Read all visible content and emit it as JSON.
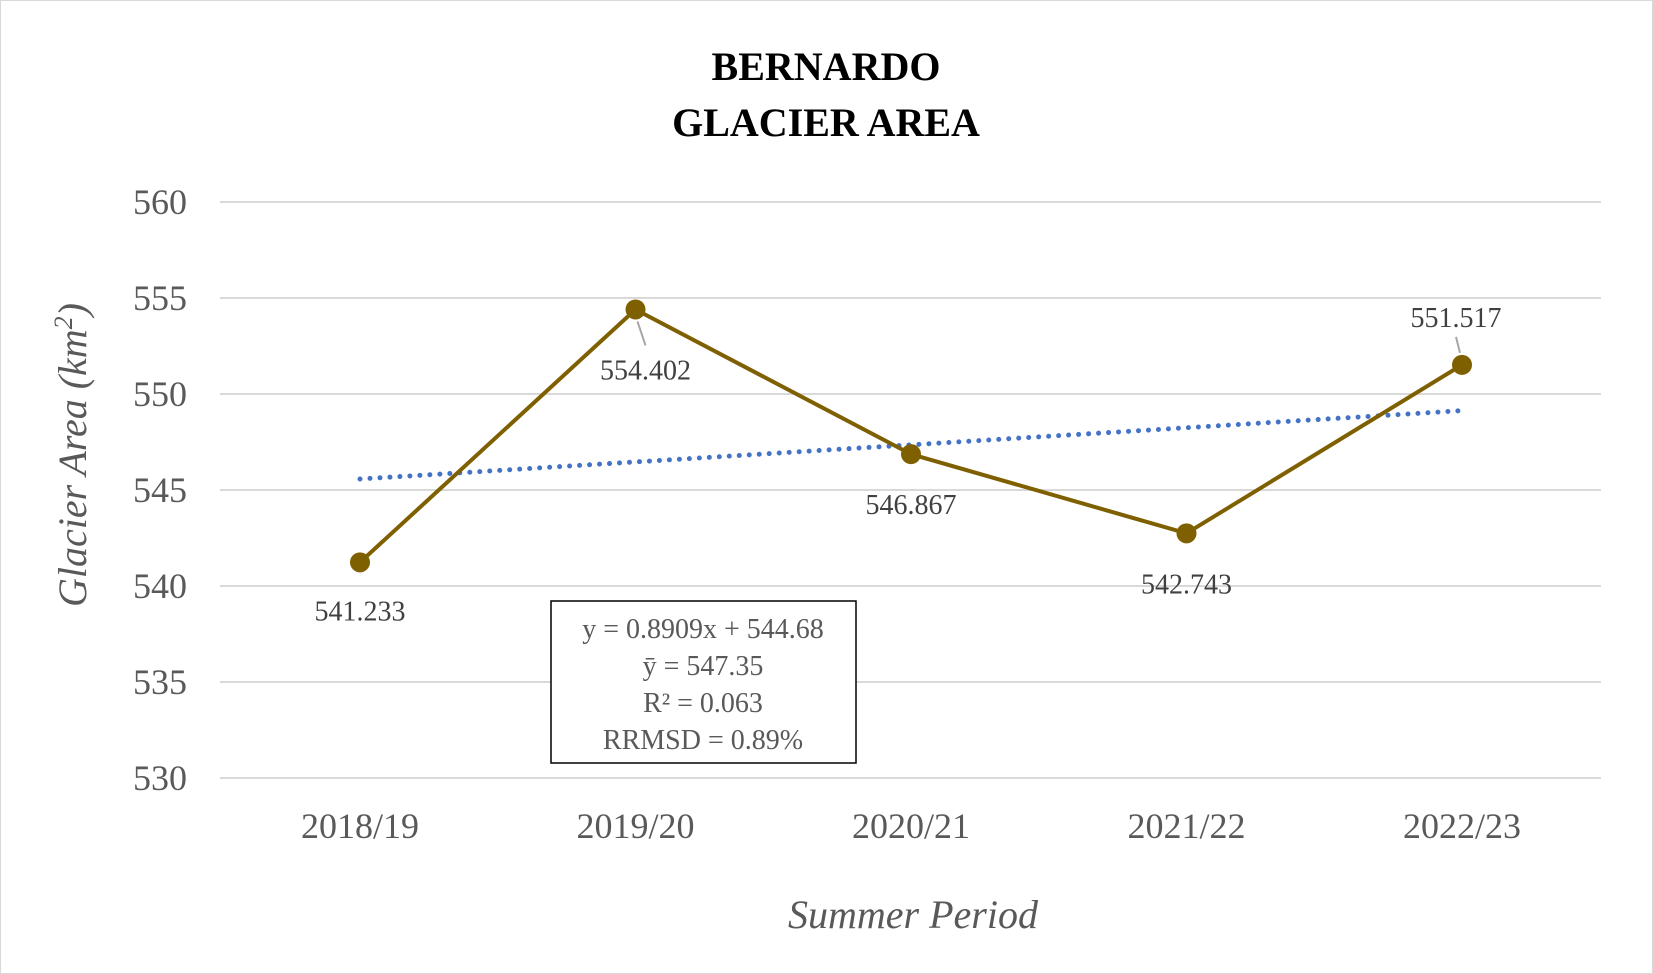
{
  "chart_data": {
    "type": "line",
    "title_lines": [
      "BERNARDO",
      "GLACIER AREA"
    ],
    "xlabel": "Summer Period",
    "ylabel_main": "Glacier Area (km",
    "ylabel_sup": "2",
    "ylabel_end": ")",
    "categories": [
      "2018/19",
      "2019/20",
      "2020/21",
      "2021/22",
      "2022/23"
    ],
    "series": [
      {
        "values": [
          541.233,
          554.402,
          546.867,
          542.743,
          551.517
        ],
        "color": "#7f6000"
      }
    ],
    "data_labels": [
      "541.233",
      "554.402",
      "546.867",
      "542.743",
      "551.517"
    ],
    "trendline": {
      "slope": 0.8909,
      "intercept": 544.68,
      "color": "#4472c4",
      "style": "dotted"
    },
    "ylim": [
      530,
      560
    ],
    "yticks": [
      530,
      535,
      540,
      545,
      550,
      555,
      560
    ],
    "grid": true,
    "stats_box": [
      "y = 0.8909x + 544.68",
      "ȳ = 547.35",
      "R² = 0.063",
      "RRMSD = 0.89%"
    ]
  }
}
